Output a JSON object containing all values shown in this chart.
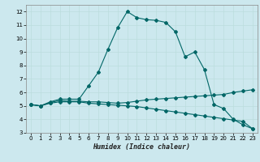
{
  "xlabel": "Humidex (Indice chaleur)",
  "bg_color": "#cce8ee",
  "line_color": "#006666",
  "grid_color": "#bbdddd",
  "xlim": [
    -0.5,
    23.5
  ],
  "ylim": [
    3,
    12.5
  ],
  "yticks": [
    3,
    4,
    5,
    6,
    7,
    8,
    9,
    10,
    11,
    12
  ],
  "xticks": [
    0,
    1,
    2,
    3,
    4,
    5,
    6,
    7,
    8,
    9,
    10,
    11,
    12,
    13,
    14,
    15,
    16,
    17,
    18,
    19,
    20,
    21,
    22,
    23
  ],
  "line_peak_x": [
    0,
    1,
    2,
    3,
    4,
    5,
    6,
    7,
    8,
    9,
    10,
    11,
    12,
    13,
    14,
    15,
    16,
    17,
    18,
    19,
    20,
    21,
    22,
    23
  ],
  "line_peak_y": [
    5.1,
    5.0,
    5.3,
    5.5,
    5.5,
    5.5,
    6.5,
    7.5,
    9.2,
    10.8,
    12.0,
    11.55,
    11.4,
    11.35,
    11.2,
    10.5,
    8.65,
    9.0,
    7.7,
    5.1,
    4.8,
    4.0,
    3.6,
    3.3
  ],
  "line_rise_x": [
    0,
    1,
    2,
    3,
    4,
    5,
    6,
    7,
    8,
    9,
    10,
    11,
    12,
    13,
    14,
    15,
    16,
    17,
    18,
    19,
    20,
    21,
    22,
    23
  ],
  "line_rise_y": [
    5.1,
    5.0,
    5.25,
    5.4,
    5.35,
    5.35,
    5.3,
    5.3,
    5.25,
    5.2,
    5.25,
    5.35,
    5.45,
    5.5,
    5.55,
    5.6,
    5.65,
    5.7,
    5.75,
    5.8,
    5.85,
    6.0,
    6.1,
    6.2
  ],
  "line_desc_x": [
    0,
    1,
    2,
    3,
    4,
    5,
    6,
    7,
    8,
    9,
    10,
    11,
    12,
    13,
    14,
    15,
    16,
    17,
    18,
    19,
    20,
    21,
    22,
    23
  ],
  "line_desc_y": [
    5.1,
    5.0,
    5.2,
    5.3,
    5.3,
    5.3,
    5.2,
    5.15,
    5.1,
    5.05,
    5.0,
    4.95,
    4.85,
    4.75,
    4.65,
    4.55,
    4.45,
    4.35,
    4.25,
    4.15,
    4.05,
    3.95,
    3.85,
    3.3
  ],
  "marker": "D",
  "marker_size": 2.0,
  "linewidth": 0.8
}
